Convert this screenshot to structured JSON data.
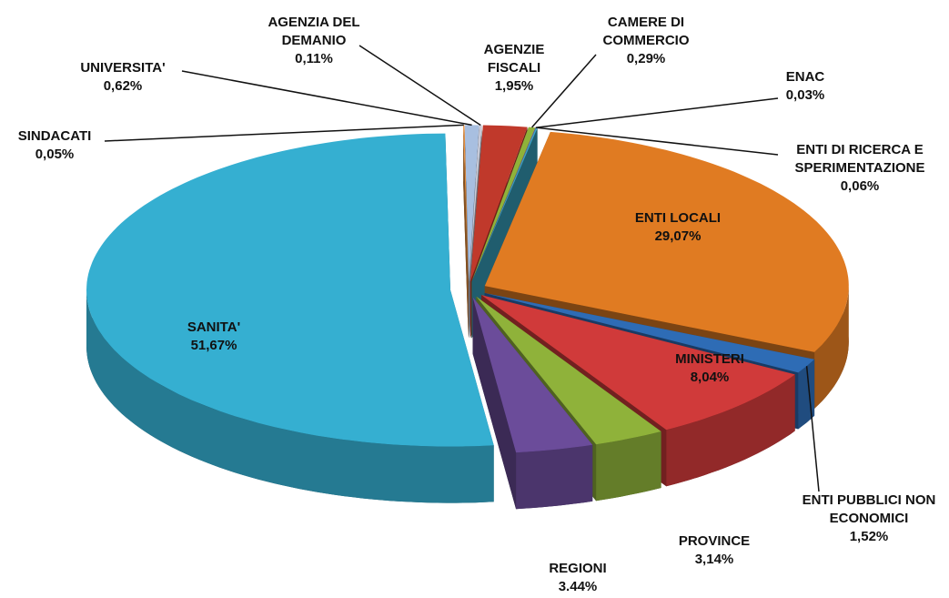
{
  "chart_data": {
    "type": "pie",
    "categories": [
      "AGENZIE FISCALI",
      "CAMERE DI COMMERCIO",
      "ENAC",
      "ENTI DI RICERCA E SPERIMENTAZIONE",
      "ENTI LOCALI",
      "ENTI PUBBLICI NON ECONOMICI",
      "MINISTERI",
      "PROVINCE",
      "REGIONI",
      "SANITA'",
      "SINDACATI",
      "UNIVERSITA'",
      "AGENZIA DEL DEMANIO"
    ],
    "values": [
      1.95,
      0.29,
      0.03,
      0.06,
      29.07,
      1.52,
      8.04,
      3.14,
      3.44,
      51.67,
      0.05,
      0.62,
      0.11
    ],
    "value_labels": [
      "1,95%",
      "0,29%",
      "0,03%",
      "0,06%",
      "29,07%",
      "1,52%",
      "8,04%",
      "3,14%",
      "3.44%",
      "51,67%",
      "0,05%",
      "0,62%",
      "0,11%"
    ],
    "colors": [
      "#c0392b",
      "#8fb23a",
      "#7b5fa0",
      "#3aa9c8",
      "#e07b22",
      "#2e6cb5",
      "#d03a3a",
      "#8fb23a",
      "#6b4c9a",
      "#35afd1",
      "#f0913a",
      "#a8bfe0",
      "#c8cad8"
    ]
  }
}
